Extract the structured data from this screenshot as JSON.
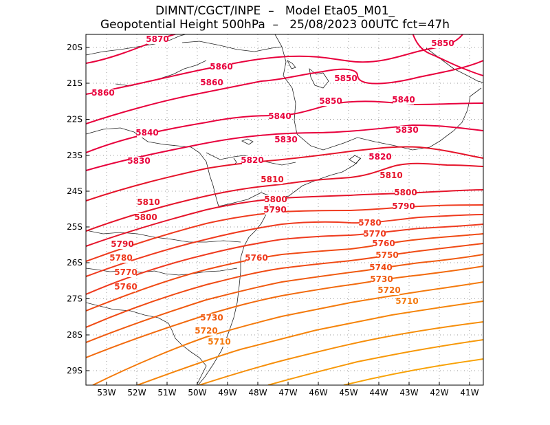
{
  "title_line1": "DIMNT/CGCT/INPE  –   Model Eta05_M01_",
  "title_line2": "Geopotential Height 500hPa  –   25/08/2023 00UTC fct=47h",
  "lat_ticks": [
    "20S",
    "21S",
    "22S",
    "23S",
    "24S",
    "25S",
    "26S",
    "27S",
    "28S",
    "29S"
  ],
  "lon_ticks": [
    "53W",
    "52W",
    "51W",
    "50W",
    "49W",
    "48W",
    "47W",
    "46W",
    "45W",
    "44W",
    "43W",
    "42W",
    "41W"
  ],
  "contour_labels": [
    {
      "text": "5870",
      "color": "#e8003c"
    },
    {
      "text": "5850",
      "color": "#e8003c"
    },
    {
      "text": "5860",
      "color": "#e8003c"
    },
    {
      "text": "5860",
      "color": "#e8003c"
    },
    {
      "text": "5850",
      "color": "#e8003c"
    },
    {
      "text": "5860",
      "color": "#e8003c"
    },
    {
      "text": "5850",
      "color": "#e8003c"
    },
    {
      "text": "5840",
      "color": "#e8003c"
    },
    {
      "text": "5840",
      "color": "#e8003c"
    },
    {
      "text": "5840",
      "color": "#e8003c"
    },
    {
      "text": "5830",
      "color": "#e8003c"
    },
    {
      "text": "5830",
      "color": "#e8003c"
    },
    {
      "text": "5830",
      "color": "#e8003c"
    },
    {
      "text": "5820",
      "color": "#e8003c"
    },
    {
      "text": "5820",
      "color": "#e8003c"
    },
    {
      "text": "5810",
      "color": "#e5142a"
    },
    {
      "text": "5810",
      "color": "#e5142a"
    },
    {
      "text": "5810",
      "color": "#e5142a"
    },
    {
      "text": "5800",
      "color": "#e5142a"
    },
    {
      "text": "5800",
      "color": "#e5142a"
    },
    {
      "text": "5800",
      "color": "#e5142a"
    },
    {
      "text": "5790",
      "color": "#e5142a"
    },
    {
      "text": "5790",
      "color": "#e5142a"
    },
    {
      "text": "5790",
      "color": "#e5142a"
    },
    {
      "text": "5780",
      "color": "#ef3a1e"
    },
    {
      "text": "5780",
      "color": "#ef3a1e"
    },
    {
      "text": "5770",
      "color": "#ef3a1e"
    },
    {
      "text": "5770",
      "color": "#ef3a1e"
    },
    {
      "text": "5760",
      "color": "#ef3a1e"
    },
    {
      "text": "5760",
      "color": "#ef3a1e"
    },
    {
      "text": "5760",
      "color": "#ef3a1e"
    },
    {
      "text": "5750",
      "color": "#f04a14"
    },
    {
      "text": "5740",
      "color": "#f04a14"
    },
    {
      "text": "5730",
      "color": "#f05a10"
    },
    {
      "text": "5730",
      "color": "#f05a10"
    },
    {
      "text": "5720",
      "color": "#f26a0e"
    },
    {
      "text": "5720",
      "color": "#f26a0e"
    },
    {
      "text": "5710",
      "color": "#f47a0c"
    },
    {
      "text": "5710",
      "color": "#f47a0c"
    }
  ],
  "contour_colors": [
    "#e8003c",
    "#e8003c",
    "#e8003c",
    "#e8003c",
    "#e8003c",
    "#e8003c",
    "#e5142a",
    "#e5142a",
    "#e5142a",
    "#ef3a1e",
    "#ef3a1e",
    "#ef3a1e",
    "#f04a14",
    "#f04a14",
    "#f05a10",
    "#f26a0e",
    "#f47a0c",
    "#f5840a",
    "#f68e0a",
    "#f79808",
    "#f8a206"
  ]
}
